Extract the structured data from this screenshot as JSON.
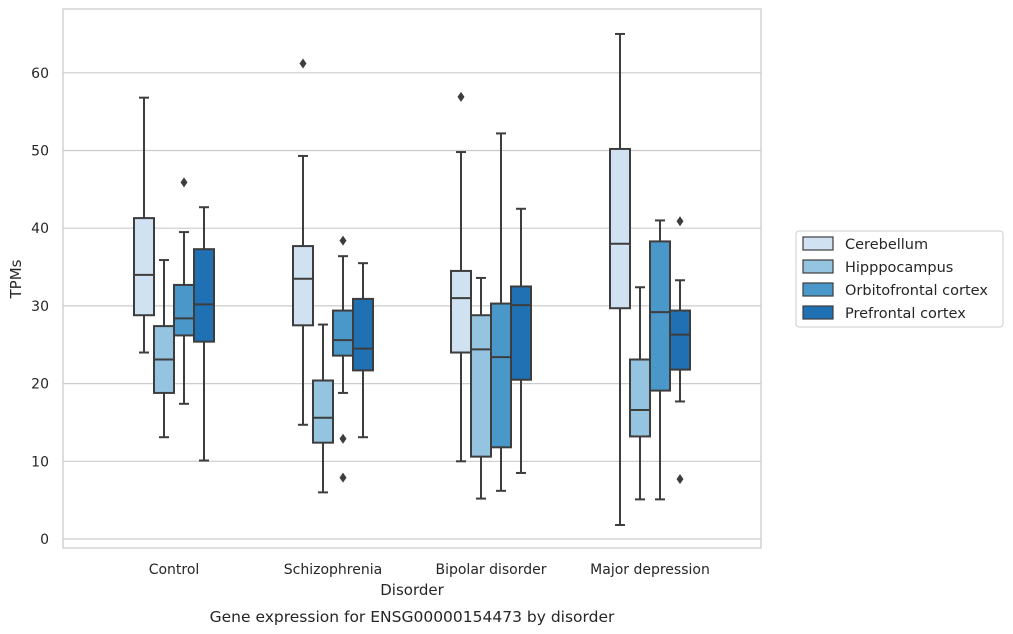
{
  "chart_data": {
    "type": "box",
    "caption": "Gene expression for ENSG00000154473 by disorder",
    "xlabel": "Disorder",
    "ylabel": "TPMs",
    "ylim": [
      -1,
      68
    ],
    "yticks": [
      0,
      10,
      20,
      30,
      40,
      50,
      60
    ],
    "grid": true,
    "legend_position": "right",
    "categories": [
      "Control",
      "Schizophrenia",
      "Bipolar disorder",
      "Major depression"
    ],
    "series": [
      {
        "name": "Cerebellum",
        "color": "#d0e1f2",
        "boxes": [
          {
            "whisker_low": 24.0,
            "q1": 28.8,
            "median": 34.0,
            "q3": 41.3,
            "whisker_high": 56.8,
            "outliers": []
          },
          {
            "whisker_low": 14.7,
            "q1": 27.5,
            "median": 33.5,
            "q3": 37.7,
            "whisker_high": 49.3,
            "outliers": [
              61.2
            ]
          },
          {
            "whisker_low": 10.0,
            "q1": 24.0,
            "median": 31.0,
            "q3": 34.5,
            "whisker_high": 49.8,
            "outliers": [
              56.9
            ]
          },
          {
            "whisker_low": 1.8,
            "q1": 29.7,
            "median": 38.0,
            "q3": 50.2,
            "whisker_high": 65.0,
            "outliers": []
          }
        ]
      },
      {
        "name": "Hipppocampus",
        "color": "#94c4df",
        "boxes": [
          {
            "whisker_low": 13.1,
            "q1": 18.8,
            "median": 23.1,
            "q3": 27.4,
            "whisker_high": 35.9,
            "outliers": []
          },
          {
            "whisker_low": 6.0,
            "q1": 12.4,
            "median": 15.6,
            "q3": 20.4,
            "whisker_high": 27.6,
            "outliers": []
          },
          {
            "whisker_low": 5.2,
            "q1": 10.6,
            "median": 24.4,
            "q3": 28.8,
            "whisker_high": 33.6,
            "outliers": []
          },
          {
            "whisker_low": 5.1,
            "q1": 13.2,
            "median": 16.6,
            "q3": 23.1,
            "whisker_high": 32.4,
            "outliers": []
          }
        ]
      },
      {
        "name": "Orbitofrontal cortex",
        "color": "#4a98c9",
        "boxes": [
          {
            "whisker_low": 17.4,
            "q1": 26.2,
            "median": 28.4,
            "q3": 32.7,
            "whisker_high": 39.5,
            "outliers": [
              45.9
            ]
          },
          {
            "whisker_low": 18.8,
            "q1": 23.6,
            "median": 25.6,
            "q3": 29.4,
            "whisker_high": 36.4,
            "outliers": [
              38.4,
              12.9,
              7.9
            ]
          },
          {
            "whisker_low": 6.2,
            "q1": 11.8,
            "median": 23.4,
            "q3": 30.3,
            "whisker_high": 52.2,
            "outliers": []
          },
          {
            "whisker_low": 5.1,
            "q1": 19.1,
            "median": 29.2,
            "q3": 38.3,
            "whisker_high": 41.0,
            "outliers": []
          }
        ]
      },
      {
        "name": "Prefrontal cortex",
        "color": "#2070b4",
        "boxes": [
          {
            "whisker_low": 10.1,
            "q1": 25.4,
            "median": 30.2,
            "q3": 37.3,
            "whisker_high": 42.7,
            "outliers": []
          },
          {
            "whisker_low": 13.1,
            "q1": 21.7,
            "median": 24.5,
            "q3": 30.9,
            "whisker_high": 35.5,
            "outliers": []
          },
          {
            "whisker_low": 8.5,
            "q1": 20.5,
            "median": 30.1,
            "q3": 32.5,
            "whisker_high": 42.5,
            "outliers": []
          },
          {
            "whisker_low": 17.7,
            "q1": 21.8,
            "median": 26.3,
            "q3": 29.4,
            "whisker_high": 33.3,
            "outliers": [
              40.9,
              7.7
            ]
          }
        ]
      }
    ]
  }
}
